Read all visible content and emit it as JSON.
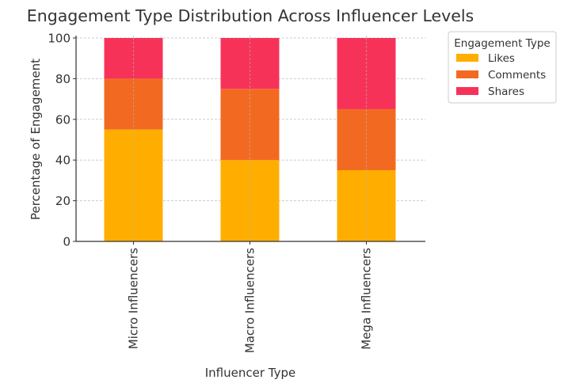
{
  "chart_data": {
    "type": "stacked-bar",
    "title": "Engagement Type Distribution Across Influencer Levels",
    "xlabel": "Influencer Type",
    "ylabel": "Percentage of Engagement",
    "categories": [
      "Micro Influencers",
      "Macro Influencers",
      "Mega Influencers"
    ],
    "series": [
      {
        "name": "Likes",
        "values": [
          55,
          40,
          35
        ],
        "color": "#FFAE00"
      },
      {
        "name": "Comments",
        "values": [
          25,
          35,
          30
        ],
        "color": "#F26A21"
      },
      {
        "name": "Shares",
        "values": [
          20,
          25,
          35
        ],
        "color": "#F73259"
      }
    ],
    "ylim": [
      0,
      100
    ],
    "yticks": [
      0,
      20,
      40,
      60,
      80,
      100
    ],
    "grid": true,
    "legend": {
      "title": "Engagement Type",
      "placement": "outside-top-right"
    }
  }
}
